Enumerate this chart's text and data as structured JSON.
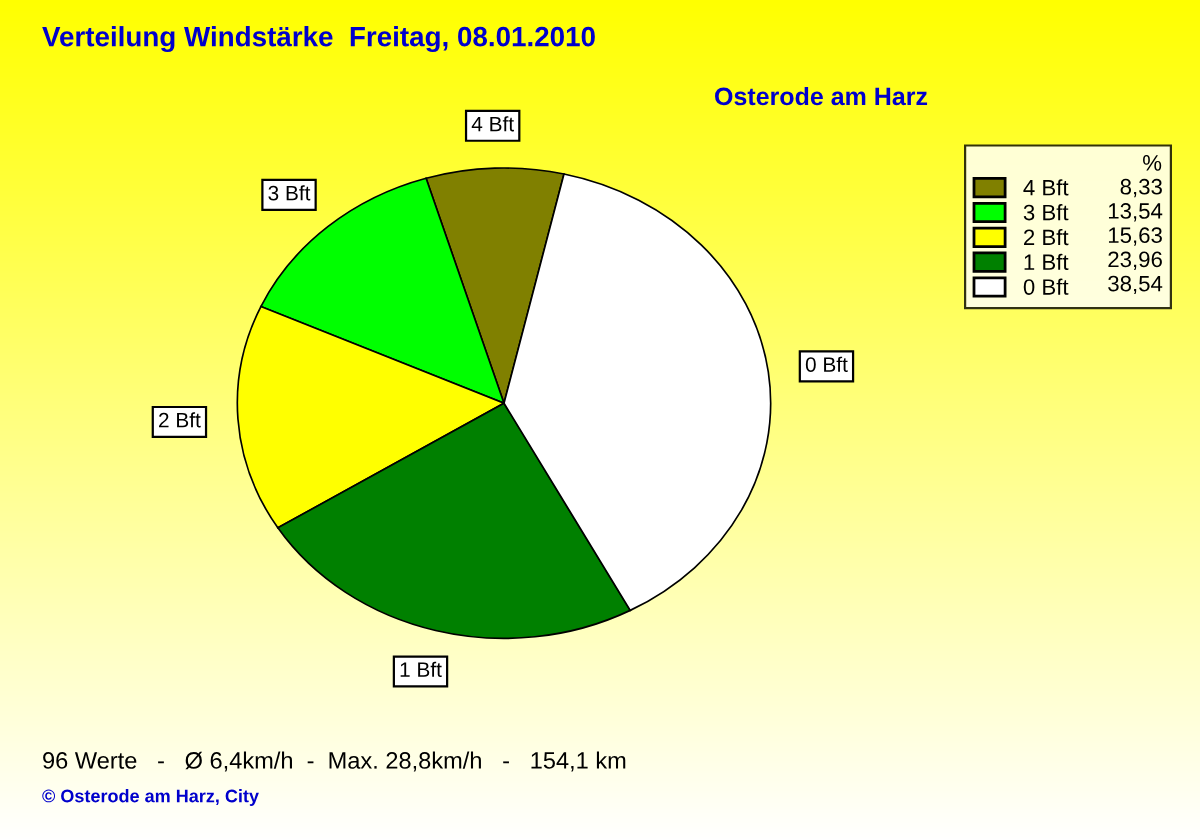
{
  "chart_data": {
    "type": "pie",
    "title": "Verteilung Windstärke  Freitag, 08.01.2010",
    "subtitle": "Osterode am Harz",
    "categories": [
      "4 Bft",
      "3 Bft",
      "2 Bft",
      "1 Bft",
      "0 Bft"
    ],
    "values": [
      8.33,
      13.54,
      15.63,
      23.96,
      38.54
    ],
    "value_labels": [
      "8,33",
      "13,54",
      "15,63",
      "23,96",
      "38,54"
    ],
    "colors": [
      "#808000",
      "#00ff00",
      "#ffff00",
      "#008000",
      "#ffffff"
    ],
    "legend": "top right",
    "legend_title": "%",
    "annotations": [
      "96 Werte   -   Ø 6,4km/h  -  Max. 28,8km/h   -   154,1 km",
      "© Osterode am Harz, City"
    ]
  }
}
